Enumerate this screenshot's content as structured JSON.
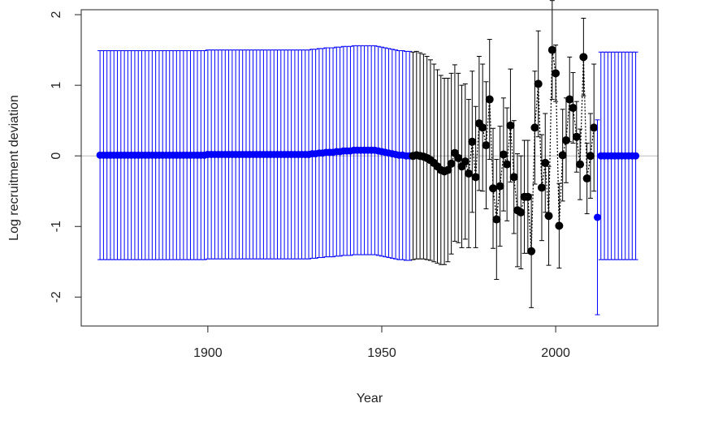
{
  "chart_data": {
    "type": "scatter",
    "title": "",
    "xlabel": "Year",
    "ylabel": "Log recruitment deviation",
    "xlim": [
      1863.6,
      2029.4
    ],
    "ylim": [
      -2.41,
      2.07
    ],
    "xticks": [
      1900,
      1950,
      2000
    ],
    "yticks": [
      -2,
      -1,
      0,
      1,
      2
    ],
    "reference_line": 0,
    "colors": {
      "early": "#0000ff",
      "main": "#000000",
      "forecast": "#0000ff",
      "reference": "#bbbbbb"
    },
    "series": [
      {
        "name": "early",
        "start_year": 1869,
        "err": 1.48,
        "values": [
          0.01,
          0.01,
          0.01,
          0.01,
          0.01,
          0.01,
          0.01,
          0.01,
          0.01,
          0.01,
          0.01,
          0.01,
          0.01,
          0.01,
          0.01,
          0.01,
          0.01,
          0.01,
          0.01,
          0.01,
          0.01,
          0.01,
          0.01,
          0.01,
          0.01,
          0.01,
          0.01,
          0.01,
          0.01,
          0.01,
          0.01,
          0.02,
          0.02,
          0.02,
          0.02,
          0.02,
          0.02,
          0.02,
          0.02,
          0.02,
          0.02,
          0.02,
          0.02,
          0.02,
          0.02,
          0.02,
          0.02,
          0.02,
          0.02,
          0.02,
          0.02,
          0.02,
          0.02,
          0.02,
          0.02,
          0.02,
          0.02,
          0.02,
          0.02,
          0.02,
          0.02,
          0.03,
          0.03,
          0.04,
          0.04,
          0.05,
          0.05,
          0.05,
          0.06,
          0.06,
          0.07,
          0.07,
          0.07,
          0.08,
          0.08,
          0.08,
          0.08,
          0.08,
          0.08,
          0.08,
          0.07,
          0.06,
          0.05,
          0.04,
          0.03,
          0.02,
          0.01,
          0.01,
          0.0,
          0.0
        ]
      },
      {
        "name": "main",
        "start_year": 1959,
        "connected": true,
        "values": [
          0.0,
          0.01,
          0.0,
          -0.01,
          -0.03,
          -0.06,
          -0.1,
          -0.15,
          -0.2,
          -0.22,
          -0.2,
          -0.11,
          0.04,
          -0.03,
          -0.15,
          -0.08,
          -0.25,
          0.2,
          -0.3,
          0.46,
          0.4,
          0.15,
          0.8,
          -0.46,
          -0.9,
          -0.43,
          0.02,
          -0.12,
          0.43,
          -0.3,
          -0.77,
          -0.8,
          -0.58,
          -0.58,
          -1.35,
          0.4,
          1.02,
          -0.45,
          -0.1,
          -0.85,
          1.5,
          1.17,
          -0.99,
          0.01,
          0.22,
          0.8,
          0.68,
          0.27,
          -0.12,
          1.4,
          -0.32,
          0.0,
          0.4
        ],
        "errs": [
          1.47,
          1.47,
          1.46,
          1.45,
          1.44,
          1.42,
          1.4,
          1.37,
          1.34,
          1.32,
          1.3,
          1.28,
          1.25,
          1.2,
          1.15,
          1.1,
          1.05,
          1.0,
          1.0,
          0.95,
          0.9,
          0.9,
          0.85,
          0.85,
          0.85,
          0.85,
          0.8,
          0.8,
          0.8,
          0.8,
          0.8,
          0.8,
          0.8,
          0.8,
          0.8,
          0.8,
          0.75,
          0.75,
          0.7,
          0.7,
          0.7,
          0.4,
          0.6,
          0.65,
          0.6,
          0.6,
          0.5,
          0.5,
          0.5,
          0.55,
          0.5,
          0.6,
          0.9
        ]
      },
      {
        "name": "forecast-transition",
        "start_year": 2012,
        "values": [
          -0.87
        ],
        "errs": [
          1.38
        ]
      },
      {
        "name": "forecast",
        "start_year": 2013,
        "err": 1.47,
        "values": [
          0,
          0,
          0,
          0,
          0,
          0,
          0,
          0,
          0,
          0,
          0
        ]
      }
    ]
  }
}
